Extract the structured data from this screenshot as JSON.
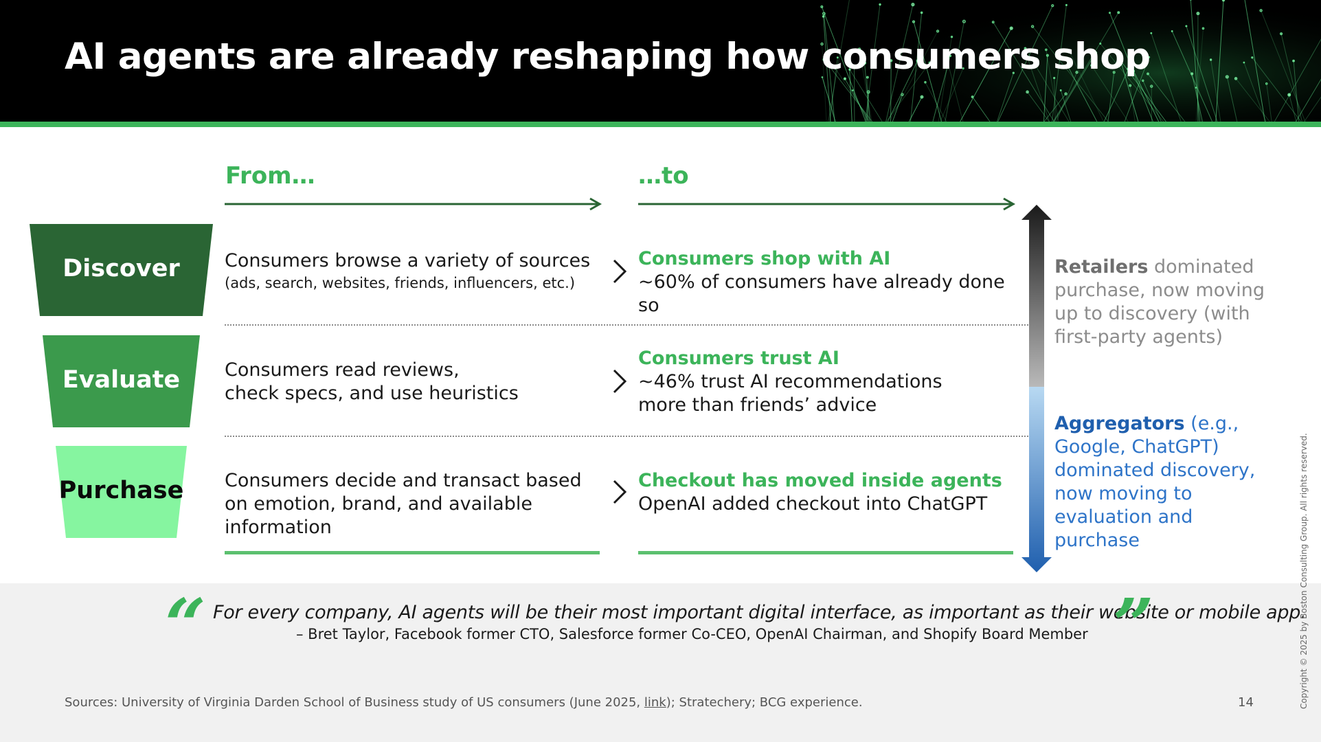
{
  "header": {
    "title": "AI agents are already reshaping how consumers shop"
  },
  "columns": {
    "from_label": "From…",
    "to_label": "…to"
  },
  "stages": [
    {
      "label": "Discover",
      "fill": "#2a6534",
      "text_color": "#ffffff",
      "from_main": "Consumers browse a variety of sources",
      "from_sub": "(ads, search, websites, friends, influencers, etc.)",
      "to_headline": "Consumers shop with AI",
      "to_lines": [
        "~60% of consumers have already done so"
      ]
    },
    {
      "label": "Evaluate",
      "fill": "#3b9a4c",
      "text_color": "#ffffff",
      "from_lines": [
        "Consumers read reviews,",
        "check specs, and use heuristics"
      ],
      "to_headline": "Consumers trust AI",
      "to_lines": [
        "~46% trust AI recommendations",
        "more than friends’ advice"
      ]
    },
    {
      "label": "Purchase",
      "fill": "#86f5a0",
      "text_color": "#0a0a0a",
      "from_lines": [
        "Consumers decide and transact based",
        "on emotion, brand, and available information"
      ],
      "to_headline": "Checkout has moved inside agents",
      "to_lines": [
        "OpenAI added checkout into ChatGPT"
      ]
    }
  ],
  "side_notes": {
    "retailers_bold": "Retailers",
    "retailers_rest": " dominated purchase, now moving up to discovery (with first-party agents)",
    "aggregators_bold": "Aggregators",
    "aggregators_rest": " (e.g., Google, ChatGPT) dominated discovery, now moving to evaluation and purchase"
  },
  "quote": {
    "open_mark": "“",
    "close_mark": "”",
    "text": "For every company, AI agents will be their most important digital interface, as important as their website or mobile app.",
    "attribution": "– Bret Taylor, Facebook former CTO, Salesforce former Co-CEO, OpenAI Chairman, and Shopify Board Member"
  },
  "footer": {
    "sources_pre": "Sources: University of Virginia Darden School of Business study of US consumers (June 2025, ",
    "sources_link": "link",
    "sources_post": "); Stratechery; BCG experience.",
    "page_number": "14",
    "copyright": "Copyright © 2025 by Boston Consulting Group. All rights reserved."
  },
  "colors": {
    "accent_green": "#3cb45a",
    "arrow_green": "#2a6534",
    "aggregator_blue": "#2e74c8",
    "retailer_gray": "#8c8c8c"
  },
  "icons": [
    "chevron-right-icon",
    "double-headed-arrow-icon",
    "arrow-right-icon"
  ]
}
